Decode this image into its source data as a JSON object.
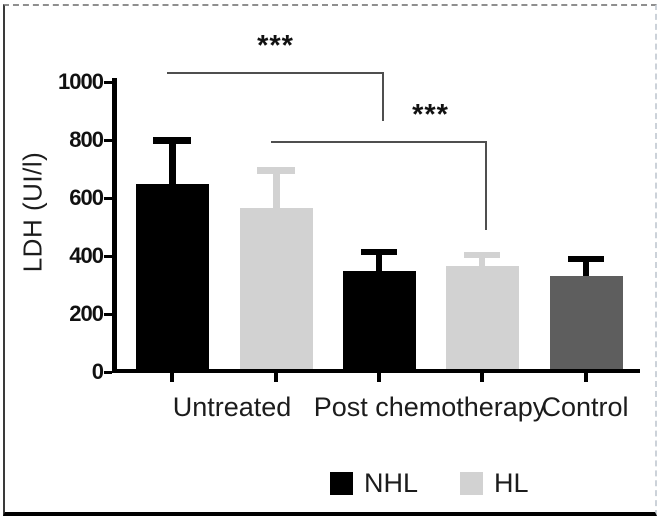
{
  "chart_data": {
    "type": "bar",
    "title": "",
    "xlabel": "",
    "ylabel": "LDH (UI/l)",
    "ylim": [
      0,
      1000
    ],
    "yticks": [
      0,
      200,
      400,
      600,
      800,
      1000
    ],
    "grid": "off",
    "legend_position": "bottom",
    "groups": [
      "Untreated",
      "Post chemotherapy",
      "Control"
    ],
    "bars": [
      {
        "group": "Untreated",
        "series": "NHL",
        "value": 650,
        "error_top": 800,
        "color": "#000000"
      },
      {
        "group": "Untreated",
        "series": "HL",
        "value": 565,
        "error_top": 695,
        "color": "#d2d2d2"
      },
      {
        "group": "Post chemotherapy",
        "series": "NHL",
        "value": 350,
        "error_top": 415,
        "color": "#000000"
      },
      {
        "group": "Post chemotherapy",
        "series": "HL",
        "value": 365,
        "error_top": 405,
        "color": "#d2d2d2"
      },
      {
        "group": "Control",
        "series": "Control",
        "value": 330,
        "error_top": 390,
        "color": "#5e5e5e",
        "error_color": "#000000"
      }
    ],
    "legend": [
      {
        "label": "NHL",
        "color": "#000000"
      },
      {
        "label": "HL",
        "color": "#d2d2d2"
      }
    ],
    "significance": [
      {
        "label": "***",
        "from_bar": 0,
        "to_bar": 2,
        "level": 1035,
        "drop_to": 865
      },
      {
        "label": "***",
        "from_bar": 1,
        "to_bar": 3,
        "level": 795,
        "drop_to": 490,
        "label_between": [
          2,
          3
        ]
      }
    ],
    "axis_color": "#000000",
    "bracket_color": "#4f4f4f",
    "text_color": "#1c1c1c"
  }
}
